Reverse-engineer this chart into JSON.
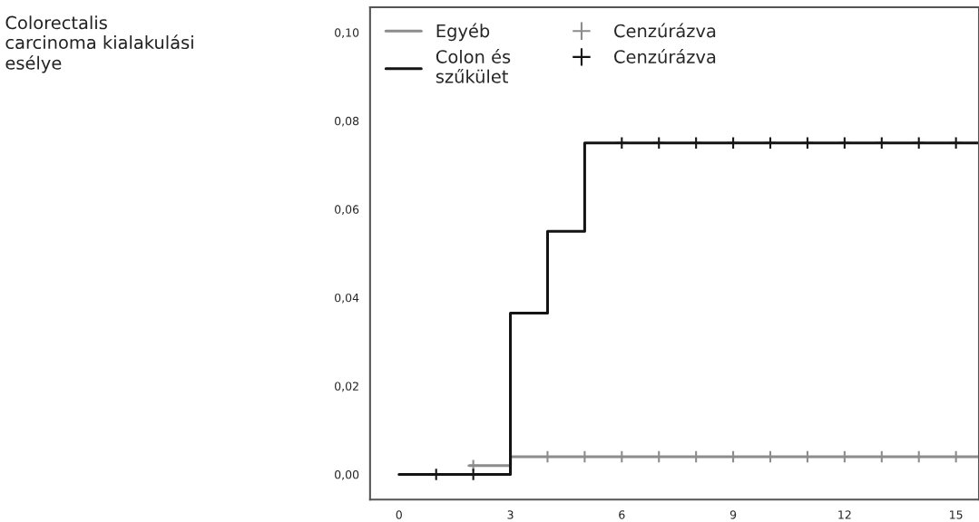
{
  "chart_data": {
    "type": "step",
    "annotations": [
      "Colorectalis\ncarcinoma kialakulási\nesélye"
    ],
    "xlim": [
      -0.78,
      15.62
    ],
    "ylim": [
      -0.0057,
      0.1057
    ],
    "xticks": [
      0,
      3,
      6,
      9,
      12,
      15
    ],
    "yticks": [
      {
        "value": 0,
        "label": "0,00"
      },
      {
        "value": 0.02,
        "label": "0,02"
      },
      {
        "value": 0.04,
        "label": "0,04"
      },
      {
        "value": 0.06,
        "label": "0,06"
      },
      {
        "value": 0.08,
        "label": "0,08"
      },
      {
        "value": 0.1,
        "label": "0,10"
      }
    ],
    "grid": false,
    "legend": "top left",
    "series": [
      {
        "name": "Egyéb",
        "color": "#8c8c8c",
        "x": [
          1.9,
          3,
          15.62
        ],
        "values": [
          0.002,
          0.004,
          0.004
        ]
      },
      {
        "name": "Colon és\nszűkület",
        "color": "#141414",
        "x": [
          0,
          3,
          4,
          5,
          15.62
        ],
        "values": [
          0,
          0.0365,
          0.055,
          0.075,
          0.075
        ]
      },
      {
        "name": "Cenzúrázva",
        "type": "scatter",
        "marker": "cross",
        "color": "#8c8c8c",
        "x": [
          2,
          4,
          5,
          6,
          7,
          8,
          9,
          10,
          11,
          12,
          13,
          14,
          15
        ],
        "values": [
          0.002,
          0.004,
          0.004,
          0.004,
          0.004,
          0.004,
          0.004,
          0.004,
          0.004,
          0.004,
          0.004,
          0.004,
          0.004
        ]
      },
      {
        "name": "Cenzúrázva",
        "type": "scatter",
        "marker": "cross",
        "color": "#141414",
        "x": [
          1,
          2,
          6,
          7,
          8,
          9,
          10,
          11,
          12,
          13,
          14,
          15
        ],
        "values": [
          0,
          0,
          0.075,
          0.075,
          0.075,
          0.075,
          0.075,
          0.075,
          0.075,
          0.075,
          0.075,
          0.075
        ]
      }
    ]
  }
}
